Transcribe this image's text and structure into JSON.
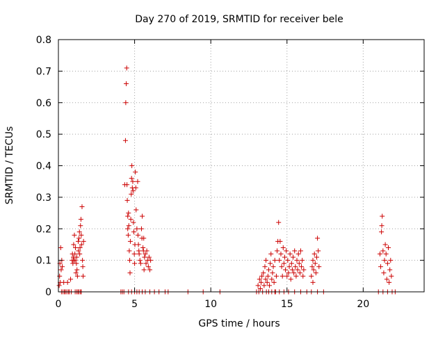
{
  "chart_data": {
    "type": "scatter",
    "title": "Day 270 of 2019, SRMTID for receiver bele",
    "xlabel": "GPS time / hours",
    "ylabel": "SRMTID / TECUs",
    "xlim": [
      0,
      24
    ],
    "ylim": [
      0,
      0.8
    ],
    "x_ticks": [
      0,
      5,
      10,
      15,
      20
    ],
    "x_tick_labels": [
      "0",
      "5",
      "10",
      "15",
      "20"
    ],
    "y_ticks": [
      0,
      0.1,
      0.2,
      0.3,
      0.4,
      0.5,
      0.6,
      0.7,
      0.8
    ],
    "y_tick_labels": [
      "0",
      "0.1",
      "0.2",
      "0.3",
      "0.4",
      "0.5",
      "0.6",
      "0.7",
      "0.8"
    ],
    "grid": true,
    "marker": "+",
    "marker_color": "#cc0000",
    "series": [
      {
        "name": "SRMTID",
        "points": [
          [
            0.05,
            0.02
          ],
          [
            0.08,
            0.05
          ],
          [
            0.1,
            0.09
          ],
          [
            0.12,
            0.03
          ],
          [
            0.15,
            0.14
          ],
          [
            0.18,
            0.07
          ],
          [
            0.2,
            0.0
          ],
          [
            0.22,
            0.1
          ],
          [
            0.25,
            0.08
          ],
          [
            0.3,
            0.0
          ],
          [
            0.35,
            0.03
          ],
          [
            0.4,
            0.0
          ],
          [
            0.45,
            0.0
          ],
          [
            0.55,
            0.0
          ],
          [
            0.6,
            0.03
          ],
          [
            0.65,
            0.0
          ],
          [
            0.72,
            0.0
          ],
          [
            0.8,
            0.04
          ],
          [
            0.85,
            0.0
          ],
          [
            0.9,
            0.1
          ],
          [
            0.92,
            0.12
          ],
          [
            0.95,
            0.09
          ],
          [
            0.98,
            0.11
          ],
          [
            1.0,
            0.15
          ],
          [
            1.02,
            0.1
          ],
          [
            1.05,
            0.18
          ],
          [
            1.08,
            0.12
          ],
          [
            1.1,
            0.1
          ],
          [
            1.12,
            0.14
          ],
          [
            1.15,
            0.06
          ],
          [
            1.18,
            0.09
          ],
          [
            1.2,
            0.11
          ],
          [
            1.22,
            0.07
          ],
          [
            1.25,
            0.05
          ],
          [
            1.28,
            0.0
          ],
          [
            1.3,
            0.16
          ],
          [
            1.32,
            0.13
          ],
          [
            1.35,
            0.17
          ],
          [
            1.38,
            0.19
          ],
          [
            1.4,
            0.12
          ],
          [
            1.42,
            0.14
          ],
          [
            1.45,
            0.21
          ],
          [
            1.48,
            0.23
          ],
          [
            1.5,
            0.18
          ],
          [
            1.52,
            0.15
          ],
          [
            1.55,
            0.27
          ],
          [
            1.58,
            0.1
          ],
          [
            1.6,
            0.08
          ],
          [
            1.62,
            0.05
          ],
          [
            1.65,
            0.16
          ],
          [
            1.1,
            0.0
          ],
          [
            1.2,
            0.0
          ],
          [
            1.35,
            0.0
          ],
          [
            1.45,
            0.0
          ],
          [
            1.5,
            0.0
          ],
          [
            4.1,
            0.0
          ],
          [
            4.2,
            0.0
          ],
          [
            4.3,
            0.0
          ],
          [
            4.35,
            0.34
          ],
          [
            4.4,
            0.48
          ],
          [
            4.42,
            0.6
          ],
          [
            4.45,
            0.66
          ],
          [
            4.48,
            0.71
          ],
          [
            4.5,
            0.34
          ],
          [
            4.52,
            0.29
          ],
          [
            4.55,
            0.24
          ],
          [
            4.55,
            0.2
          ],
          [
            4.58,
            0.18
          ],
          [
            4.6,
            0.25
          ],
          [
            4.62,
            0.21
          ],
          [
            4.65,
            0.13
          ],
          [
            4.68,
            0.1
          ],
          [
            4.7,
            0.06
          ],
          [
            4.72,
            0.16
          ],
          [
            4.75,
            0.23
          ],
          [
            4.78,
            0.31
          ],
          [
            4.8,
            0.36
          ],
          [
            4.82,
            0.4
          ],
          [
            4.85,
            0.33
          ],
          [
            4.88,
            0.35
          ],
          [
            4.9,
            0.32
          ],
          [
            4.92,
            0.22
          ],
          [
            4.95,
            0.19
          ],
          [
            4.98,
            0.12
          ],
          [
            5.0,
            0.09
          ],
          [
            5.02,
            0.15
          ],
          [
            5.05,
            0.38
          ],
          [
            5.08,
            0.33
          ],
          [
            5.1,
            0.26
          ],
          [
            5.15,
            0.2
          ],
          [
            5.2,
            0.35
          ],
          [
            5.22,
            0.18
          ],
          [
            5.25,
            0.15
          ],
          [
            5.28,
            0.13
          ],
          [
            5.3,
            0.12
          ],
          [
            5.35,
            0.1
          ],
          [
            5.4,
            0.09
          ],
          [
            5.45,
            0.2
          ],
          [
            5.48,
            0.17
          ],
          [
            5.5,
            0.24
          ],
          [
            5.55,
            0.14
          ],
          [
            5.58,
            0.13
          ],
          [
            5.6,
            0.17
          ],
          [
            5.62,
            0.07
          ],
          [
            5.65,
            0.11
          ],
          [
            5.7,
            0.12
          ],
          [
            5.75,
            0.09
          ],
          [
            5.8,
            0.13
          ],
          [
            5.85,
            0.1
          ],
          [
            5.9,
            0.08
          ],
          [
            5.95,
            0.11
          ],
          [
            6.0,
            0.07
          ],
          [
            6.05,
            0.1
          ],
          [
            4.6,
            0.0
          ],
          [
            4.8,
            0.0
          ],
          [
            5.0,
            0.0
          ],
          [
            5.15,
            0.0
          ],
          [
            5.3,
            0.0
          ],
          [
            5.5,
            0.0
          ],
          [
            5.7,
            0.0
          ],
          [
            6.0,
            0.0
          ],
          [
            6.3,
            0.0
          ],
          [
            6.6,
            0.0
          ],
          [
            7.0,
            0.0
          ],
          [
            7.2,
            0.0
          ],
          [
            8.5,
            0.0
          ],
          [
            9.5,
            0.0
          ],
          [
            10.6,
            0.0
          ],
          [
            13.0,
            0.0
          ],
          [
            13.1,
            0.02
          ],
          [
            13.15,
            0.0
          ],
          [
            13.2,
            0.04
          ],
          [
            13.25,
            0.01
          ],
          [
            13.3,
            0.03
          ],
          [
            13.35,
            0.05
          ],
          [
            13.4,
            0.0
          ],
          [
            13.45,
            0.06
          ],
          [
            13.5,
            0.02
          ],
          [
            13.55,
            0.08
          ],
          [
            13.6,
            0.04
          ],
          [
            13.62,
            0.1
          ],
          [
            13.65,
            0.0
          ],
          [
            13.7,
            0.03
          ],
          [
            13.75,
            0.05
          ],
          [
            13.8,
            0.07
          ],
          [
            13.85,
            0.02
          ],
          [
            13.9,
            0.09
          ],
          [
            13.95,
            0.12
          ],
          [
            14.0,
            0.04
          ],
          [
            14.05,
            0.06
          ],
          [
            14.1,
            0.08
          ],
          [
            14.15,
            0.03
          ],
          [
            14.2,
            0.1
          ],
          [
            14.25,
            0.0
          ],
          [
            14.3,
            0.05
          ],
          [
            14.35,
            0.13
          ],
          [
            14.4,
            0.16
          ],
          [
            14.45,
            0.22
          ],
          [
            14.5,
            0.1
          ],
          [
            14.55,
            0.16
          ],
          [
            14.6,
            0.12
          ],
          [
            14.65,
            0.08
          ],
          [
            14.7,
            0.05
          ],
          [
            14.75,
            0.14
          ],
          [
            14.8,
            0.09
          ],
          [
            14.85,
            0.11
          ],
          [
            14.9,
            0.07
          ],
          [
            14.95,
            0.13
          ],
          [
            15.0,
            0.05
          ],
          [
            15.05,
            0.1
          ],
          [
            15.1,
            0.06
          ],
          [
            15.15,
            0.08
          ],
          [
            15.2,
            0.12
          ],
          [
            15.25,
            0.04
          ],
          [
            15.3,
            0.09
          ],
          [
            15.35,
            0.07
          ],
          [
            15.4,
            0.11
          ],
          [
            15.45,
            0.06
          ],
          [
            15.5,
            0.13
          ],
          [
            15.55,
            0.08
          ],
          [
            15.6,
            0.05
          ],
          [
            15.65,
            0.1
          ],
          [
            15.7,
            0.07
          ],
          [
            15.75,
            0.12
          ],
          [
            15.8,
            0.09
          ],
          [
            15.85,
            0.06
          ],
          [
            15.9,
            0.13
          ],
          [
            15.95,
            0.08
          ],
          [
            16.0,
            0.1
          ],
          [
            16.05,
            0.05
          ],
          [
            16.1,
            0.07
          ],
          [
            13.8,
            0.0
          ],
          [
            14.0,
            0.0
          ],
          [
            14.2,
            0.0
          ],
          [
            14.5,
            0.0
          ],
          [
            14.8,
            0.0
          ],
          [
            15.1,
            0.0
          ],
          [
            15.5,
            0.0
          ],
          [
            15.9,
            0.0
          ],
          [
            16.3,
            0.0
          ],
          [
            16.6,
            0.0
          ],
          [
            17.0,
            0.0
          ],
          [
            17.4,
            0.0
          ],
          [
            16.6,
            0.05
          ],
          [
            16.65,
            0.08
          ],
          [
            16.7,
            0.1
          ],
          [
            16.75,
            0.07
          ],
          [
            16.8,
            0.12
          ],
          [
            16.85,
            0.09
          ],
          [
            16.9,
            0.06
          ],
          [
            16.95,
            0.11
          ],
          [
            17.0,
            0.17
          ],
          [
            17.05,
            0.13
          ],
          [
            17.1,
            0.08
          ],
          [
            16.7,
            0.03
          ],
          [
            21.0,
            0.0
          ],
          [
            21.1,
            0.12
          ],
          [
            21.15,
            0.08
          ],
          [
            21.2,
            0.19
          ],
          [
            21.22,
            0.21
          ],
          [
            21.25,
            0.24
          ],
          [
            21.3,
            0.13
          ],
          [
            21.35,
            0.06
          ],
          [
            21.4,
            0.1
          ],
          [
            21.45,
            0.15
          ],
          [
            21.5,
            0.12
          ],
          [
            21.55,
            0.04
          ],
          [
            21.6,
            0.09
          ],
          [
            21.65,
            0.14
          ],
          [
            21.7,
            0.03
          ],
          [
            21.75,
            0.07
          ],
          [
            21.8,
            0.1
          ],
          [
            21.85,
            0.05
          ],
          [
            21.3,
            0.0
          ],
          [
            21.6,
            0.0
          ],
          [
            21.9,
            0.0
          ],
          [
            22.1,
            0.0
          ]
        ]
      }
    ]
  }
}
